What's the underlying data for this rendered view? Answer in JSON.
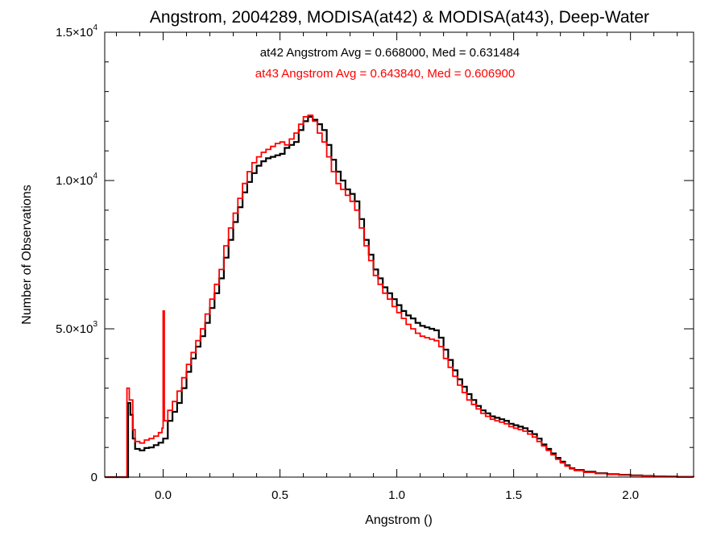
{
  "chart_data": {
    "type": "line",
    "title": "Angstrom, 2004289, MODISA(at42) & MODISA(at43), Deep-Water",
    "xlabel": "Angstrom ()",
    "ylabel": "Number of Observations",
    "xlim": [
      -0.25,
      2.27
    ],
    "ylim": [
      0,
      15000
    ],
    "x_ticks": [
      {
        "value": 0.0,
        "label": "0.0"
      },
      {
        "value": 0.5,
        "label": "0.5"
      },
      {
        "value": 1.0,
        "label": "1.0"
      },
      {
        "value": 1.5,
        "label": "1.5"
      },
      {
        "value": 2.0,
        "label": "2.0"
      }
    ],
    "y_ticks": [
      {
        "value": 0,
        "mant": "0",
        "exp": ""
      },
      {
        "value": 5000,
        "mant": "5.0×10",
        "exp": "3"
      },
      {
        "value": 10000,
        "mant": "1.0×10",
        "exp": "4"
      },
      {
        "value": 15000,
        "mant": "1.5×10",
        "exp": "4"
      }
    ],
    "annotations": [
      {
        "text": "at42 Angstrom Avg = 0.668000, Med = 0.631484",
        "color": "#000000"
      },
      {
        "text": "at43 Angstrom Avg = 0.643840, Med = 0.606900",
        "color": "#ff0000"
      }
    ],
    "grid": false,
    "step": true,
    "series": [
      {
        "name": "at42",
        "color": "#000000",
        "points": [
          [
            -0.25,
            0
          ],
          [
            -0.155,
            0
          ],
          [
            -0.15,
            2500
          ],
          [
            -0.14,
            2100
          ],
          [
            -0.13,
            1300
          ],
          [
            -0.12,
            950
          ],
          [
            -0.1,
            900
          ],
          [
            -0.08,
            980
          ],
          [
            -0.06,
            1000
          ],
          [
            -0.04,
            1080
          ],
          [
            -0.02,
            1160
          ],
          [
            0.0,
            1300
          ],
          [
            0.02,
            1900
          ],
          [
            0.04,
            2200
          ],
          [
            0.06,
            2500
          ],
          [
            0.08,
            3000
          ],
          [
            0.1,
            3550
          ],
          [
            0.12,
            4000
          ],
          [
            0.14,
            4400
          ],
          [
            0.16,
            4750
          ],
          [
            0.18,
            5200
          ],
          [
            0.2,
            5700
          ],
          [
            0.22,
            6200
          ],
          [
            0.24,
            6700
          ],
          [
            0.26,
            7400
          ],
          [
            0.28,
            8000
          ],
          [
            0.3,
            8600
          ],
          [
            0.32,
            9100
          ],
          [
            0.34,
            9600
          ],
          [
            0.36,
            9950
          ],
          [
            0.38,
            10250
          ],
          [
            0.4,
            10500
          ],
          [
            0.42,
            10650
          ],
          [
            0.44,
            10750
          ],
          [
            0.46,
            10800
          ],
          [
            0.48,
            10850
          ],
          [
            0.5,
            10900
          ],
          [
            0.52,
            11100
          ],
          [
            0.54,
            11200
          ],
          [
            0.56,
            11300
          ],
          [
            0.58,
            11700
          ],
          [
            0.6,
            12000
          ],
          [
            0.62,
            12150
          ],
          [
            0.64,
            12050
          ],
          [
            0.66,
            11900
          ],
          [
            0.68,
            11700
          ],
          [
            0.7,
            11200
          ],
          [
            0.72,
            10700
          ],
          [
            0.74,
            10300
          ],
          [
            0.76,
            10000
          ],
          [
            0.78,
            9700
          ],
          [
            0.8,
            9550
          ],
          [
            0.82,
            9300
          ],
          [
            0.84,
            8700
          ],
          [
            0.86,
            8000
          ],
          [
            0.88,
            7500
          ],
          [
            0.9,
            7000
          ],
          [
            0.92,
            6700
          ],
          [
            0.94,
            6400
          ],
          [
            0.96,
            6200
          ],
          [
            0.98,
            6000
          ],
          [
            1.0,
            5800
          ],
          [
            1.02,
            5600
          ],
          [
            1.04,
            5450
          ],
          [
            1.06,
            5350
          ],
          [
            1.08,
            5200
          ],
          [
            1.1,
            5100
          ],
          [
            1.12,
            5050
          ],
          [
            1.14,
            5000
          ],
          [
            1.16,
            4950
          ],
          [
            1.18,
            4700
          ],
          [
            1.2,
            4300
          ],
          [
            1.22,
            3950
          ],
          [
            1.24,
            3600
          ],
          [
            1.26,
            3300
          ],
          [
            1.28,
            3050
          ],
          [
            1.3,
            2800
          ],
          [
            1.32,
            2600
          ],
          [
            1.34,
            2400
          ],
          [
            1.36,
            2250
          ],
          [
            1.38,
            2150
          ],
          [
            1.4,
            2050
          ],
          [
            1.42,
            2000
          ],
          [
            1.44,
            1950
          ],
          [
            1.46,
            1900
          ],
          [
            1.48,
            1800
          ],
          [
            1.5,
            1750
          ],
          [
            1.52,
            1700
          ],
          [
            1.54,
            1650
          ],
          [
            1.56,
            1550
          ],
          [
            1.58,
            1450
          ],
          [
            1.6,
            1300
          ],
          [
            1.62,
            1100
          ],
          [
            1.64,
            950
          ],
          [
            1.66,
            800
          ],
          [
            1.68,
            650
          ],
          [
            1.7,
            520
          ],
          [
            1.72,
            400
          ],
          [
            1.74,
            300
          ],
          [
            1.76,
            240
          ],
          [
            1.8,
            180
          ],
          [
            1.85,
            130
          ],
          [
            1.9,
            100
          ],
          [
            1.95,
            80
          ],
          [
            2.0,
            60
          ],
          [
            2.05,
            40
          ],
          [
            2.1,
            25
          ],
          [
            2.15,
            15
          ],
          [
            2.2,
            8
          ],
          [
            2.27,
            5
          ]
        ]
      },
      {
        "name": "at43",
        "color": "#ff0000",
        "points": [
          [
            -0.25,
            0
          ],
          [
            -0.16,
            0
          ],
          [
            -0.155,
            3000
          ],
          [
            -0.145,
            2600
          ],
          [
            -0.13,
            1600
          ],
          [
            -0.12,
            1200
          ],
          [
            -0.1,
            1150
          ],
          [
            -0.08,
            1250
          ],
          [
            -0.06,
            1300
          ],
          [
            -0.04,
            1380
          ],
          [
            -0.02,
            1500
          ],
          [
            -0.005,
            1650
          ],
          [
            0.0,
            5600
          ],
          [
            0.005,
            1900
          ],
          [
            0.02,
            2250
          ],
          [
            0.04,
            2550
          ],
          [
            0.06,
            2900
          ],
          [
            0.08,
            3350
          ],
          [
            0.1,
            3800
          ],
          [
            0.12,
            4200
          ],
          [
            0.14,
            4600
          ],
          [
            0.16,
            5000
          ],
          [
            0.18,
            5500
          ],
          [
            0.2,
            6000
          ],
          [
            0.22,
            6500
          ],
          [
            0.24,
            7000
          ],
          [
            0.26,
            7800
          ],
          [
            0.28,
            8400
          ],
          [
            0.3,
            8900
          ],
          [
            0.32,
            9400
          ],
          [
            0.34,
            9900
          ],
          [
            0.36,
            10300
          ],
          [
            0.38,
            10600
          ],
          [
            0.4,
            10800
          ],
          [
            0.42,
            10950
          ],
          [
            0.44,
            11050
          ],
          [
            0.46,
            11150
          ],
          [
            0.48,
            11250
          ],
          [
            0.5,
            11300
          ],
          [
            0.52,
            11200
          ],
          [
            0.54,
            11400
          ],
          [
            0.56,
            11600
          ],
          [
            0.58,
            11900
          ],
          [
            0.6,
            12150
          ],
          [
            0.62,
            12200
          ],
          [
            0.64,
            12000
          ],
          [
            0.66,
            11600
          ],
          [
            0.68,
            11300
          ],
          [
            0.7,
            10800
          ],
          [
            0.72,
            10300
          ],
          [
            0.74,
            9900
          ],
          [
            0.76,
            9700
          ],
          [
            0.78,
            9500
          ],
          [
            0.8,
            9300
          ],
          [
            0.82,
            9000
          ],
          [
            0.84,
            8400
          ],
          [
            0.86,
            7800
          ],
          [
            0.88,
            7300
          ],
          [
            0.9,
            6800
          ],
          [
            0.92,
            6500
          ],
          [
            0.94,
            6200
          ],
          [
            0.96,
            6000
          ],
          [
            0.98,
            5750
          ],
          [
            1.0,
            5550
          ],
          [
            1.02,
            5350
          ],
          [
            1.04,
            5150
          ],
          [
            1.06,
            5000
          ],
          [
            1.08,
            4850
          ],
          [
            1.1,
            4750
          ],
          [
            1.12,
            4700
          ],
          [
            1.14,
            4650
          ],
          [
            1.16,
            4600
          ],
          [
            1.18,
            4400
          ],
          [
            1.2,
            4000
          ],
          [
            1.22,
            3700
          ],
          [
            1.24,
            3400
          ],
          [
            1.26,
            3100
          ],
          [
            1.28,
            2850
          ],
          [
            1.3,
            2600
          ],
          [
            1.32,
            2450
          ],
          [
            1.34,
            2300
          ],
          [
            1.36,
            2150
          ],
          [
            1.38,
            2050
          ],
          [
            1.4,
            1950
          ],
          [
            1.42,
            1900
          ],
          [
            1.44,
            1850
          ],
          [
            1.46,
            1800
          ],
          [
            1.48,
            1700
          ],
          [
            1.5,
            1650
          ],
          [
            1.52,
            1600
          ],
          [
            1.54,
            1550
          ],
          [
            1.56,
            1450
          ],
          [
            1.58,
            1350
          ],
          [
            1.6,
            1200
          ],
          [
            1.62,
            1050
          ],
          [
            1.64,
            900
          ],
          [
            1.66,
            750
          ],
          [
            1.68,
            600
          ],
          [
            1.7,
            480
          ],
          [
            1.72,
            370
          ],
          [
            1.74,
            280
          ],
          [
            1.76,
            220
          ],
          [
            1.8,
            160
          ],
          [
            1.85,
            120
          ],
          [
            1.9,
            90
          ],
          [
            1.95,
            70
          ],
          [
            2.0,
            50
          ],
          [
            2.05,
            35
          ],
          [
            2.1,
            20
          ],
          [
            2.15,
            12
          ],
          [
            2.2,
            6
          ],
          [
            2.27,
            4
          ]
        ]
      }
    ]
  }
}
